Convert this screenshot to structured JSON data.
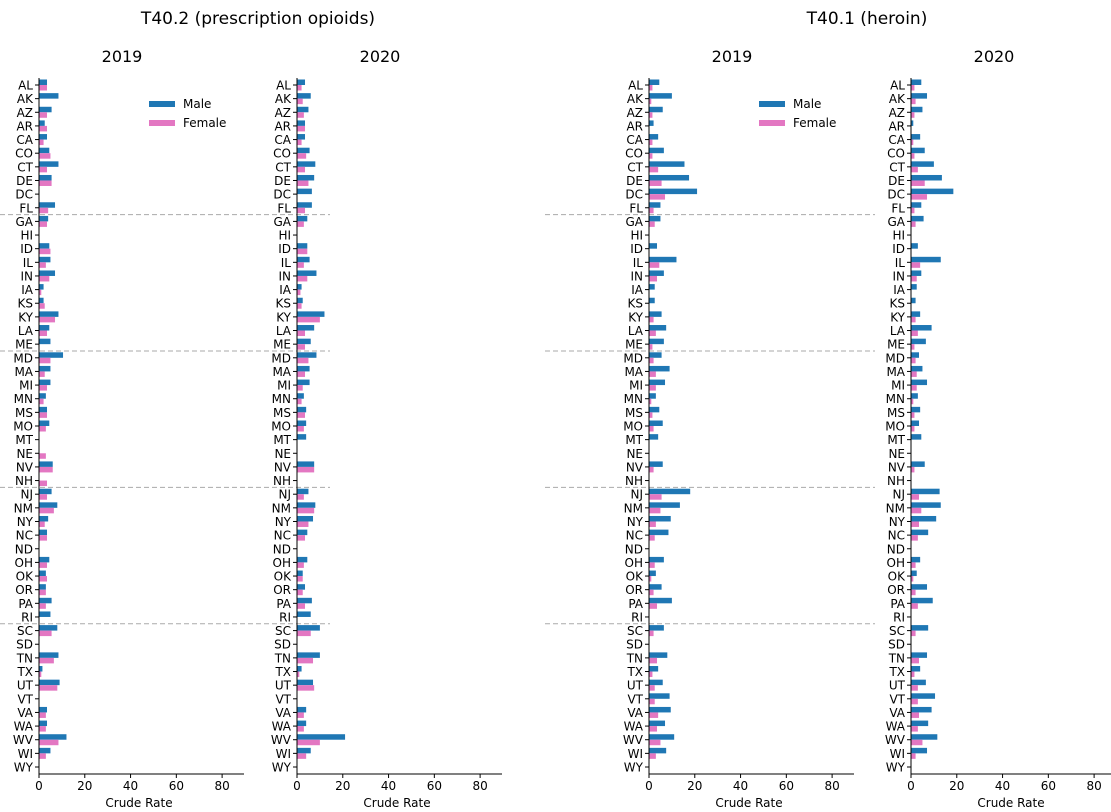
{
  "figure": {
    "group_titles": [
      "T40.2 (prescription opioids)",
      "T40.1 (heroin)"
    ],
    "xlabel": "Crude Rate",
    "legend": [
      "Male",
      "Female"
    ]
  },
  "colors": {
    "male": "#1f77b4",
    "female": "#e377c2",
    "axis": "#000000",
    "divider": "#aaaaaa"
  },
  "chart_data": [
    {
      "type": "bar",
      "orientation": "horizontal",
      "title": "2019",
      "group": "T40.2 (prescription opioids)",
      "xlabel": "Crude Rate",
      "xlim": [
        0,
        90
      ],
      "xticks": [
        0,
        20,
        40,
        60,
        80
      ],
      "categories": [
        "AL",
        "AK",
        "AZ",
        "AR",
        "CA",
        "CO",
        "CT",
        "DE",
        "DC",
        "FL",
        "GA",
        "HI",
        "ID",
        "IL",
        "IN",
        "IA",
        "KS",
        "KY",
        "LA",
        "ME",
        "MD",
        "MA",
        "MI",
        "MN",
        "MS",
        "MO",
        "MT",
        "NE",
        "NV",
        "NH",
        "NJ",
        "NM",
        "NY",
        "NC",
        "ND",
        "OH",
        "OK",
        "OR",
        "PA",
        "RI",
        "SC",
        "SD",
        "TN",
        "TX",
        "UT",
        "VT",
        "VA",
        "WA",
        "WV",
        "WI",
        "WY"
      ],
      "series": [
        {
          "name": "Male",
          "values": [
            3.5,
            8.5,
            5.5,
            2.5,
            3.5,
            4.5,
            8.5,
            5.5,
            0,
            7,
            4,
            0,
            4.5,
            5,
            7,
            2,
            2,
            8.5,
            4.5,
            5,
            10.5,
            5,
            5,
            3,
            3.5,
            4.5,
            0,
            0,
            6,
            0,
            5.5,
            8,
            4,
            3.5,
            0,
            4.5,
            3,
            3,
            5.5,
            5,
            8,
            0,
            8.5,
            1.5,
            9,
            0,
            3.5,
            3.5,
            12,
            5,
            0
          ]
        },
        {
          "name": "Female",
          "values": [
            3.5,
            0,
            3.5,
            3.5,
            2,
            5,
            3.5,
            5.5,
            0,
            4,
            3.5,
            0,
            5,
            3,
            4.5,
            1,
            2.5,
            7,
            3.5,
            0,
            5,
            2.5,
            3.5,
            2,
            3.5,
            3,
            0,
            3,
            6,
            3.5,
            3.5,
            6.5,
            2.5,
            3.5,
            0,
            3.5,
            3.5,
            3,
            3,
            0,
            5.5,
            0,
            6.5,
            1,
            8,
            0,
            3,
            3,
            8.5,
            3,
            0
          ]
        }
      ],
      "legend": "top-right",
      "grid": false
    },
    {
      "type": "bar",
      "orientation": "horizontal",
      "title": "2020",
      "group": "T40.2 (prescription opioids)",
      "xlabel": "Crude Rate",
      "xlim": [
        0,
        90
      ],
      "xticks": [
        0,
        20,
        40,
        60,
        80
      ],
      "categories": [
        "AL",
        "AK",
        "AZ",
        "AR",
        "CA",
        "CO",
        "CT",
        "DE",
        "DC",
        "FL",
        "GA",
        "HI",
        "ID",
        "IL",
        "IN",
        "IA",
        "KS",
        "KY",
        "LA",
        "ME",
        "MD",
        "MA",
        "MI",
        "MN",
        "MS",
        "MO",
        "MT",
        "NE",
        "NV",
        "NH",
        "NJ",
        "NM",
        "NY",
        "NC",
        "ND",
        "OH",
        "OK",
        "OR",
        "PA",
        "RI",
        "SC",
        "SD",
        "TN",
        "TX",
        "UT",
        "VT",
        "VA",
        "WA",
        "WV",
        "WI",
        "WY"
      ],
      "series": [
        {
          "name": "Male",
          "values": [
            3.5,
            6,
            5,
            3.5,
            3.5,
            5.5,
            8,
            7.5,
            6.5,
            6.5,
            4.5,
            0,
            4.5,
            5.5,
            8.5,
            2,
            2.5,
            12,
            7.5,
            6,
            8.5,
            5.5,
            5.5,
            3,
            4,
            4,
            4,
            0,
            7.5,
            0,
            5,
            8,
            7,
            4.5,
            0,
            4.5,
            2.5,
            3.5,
            6.5,
            6,
            10,
            0,
            10,
            2,
            7,
            0,
            4,
            4,
            21,
            6,
            0
          ]
        },
        {
          "name": "Female",
          "values": [
            2,
            2.5,
            3,
            3.5,
            2,
            4,
            3.5,
            5,
            0,
            3.5,
            3,
            0,
            4.5,
            3,
            4.5,
            1.5,
            2,
            10,
            3.5,
            3.5,
            5,
            3.5,
            2.5,
            2,
            3.5,
            3,
            0,
            0,
            7.5,
            0,
            3,
            7.5,
            5,
            3.5,
            0,
            3,
            2.5,
            2.5,
            3.5,
            0,
            6,
            0,
            7,
            1,
            7.5,
            0,
            3,
            3,
            10,
            4,
            0
          ]
        }
      ],
      "grid": false
    },
    {
      "type": "bar",
      "orientation": "horizontal",
      "title": "2019",
      "group": "T40.1 (heroin)",
      "xlabel": "Crude Rate",
      "xlim": [
        0,
        90
      ],
      "xticks": [
        0,
        20,
        40,
        60,
        80
      ],
      "categories": [
        "AL",
        "AK",
        "AZ",
        "AR",
        "CA",
        "CO",
        "CT",
        "DE",
        "DC",
        "FL",
        "GA",
        "HI",
        "ID",
        "IL",
        "IN",
        "IA",
        "KS",
        "KY",
        "LA",
        "ME",
        "MD",
        "MA",
        "MI",
        "MN",
        "MS",
        "MO",
        "MT",
        "NE",
        "NV",
        "NH",
        "NJ",
        "NM",
        "NY",
        "NC",
        "ND",
        "OH",
        "OK",
        "OR",
        "PA",
        "RI",
        "SC",
        "SD",
        "TN",
        "TX",
        "UT",
        "VT",
        "VA",
        "WA",
        "WV",
        "WI",
        "WY"
      ],
      "series": [
        {
          "name": "Male",
          "values": [
            4.5,
            10,
            6,
            2,
            4,
            6.5,
            15.5,
            17.5,
            21,
            5,
            5,
            0,
            3.5,
            12,
            6.5,
            2.5,
            2.5,
            5.5,
            7.5,
            6.5,
            5.5,
            9,
            7,
            3,
            4.5,
            6,
            4,
            0,
            6,
            0,
            18,
            13.5,
            9.5,
            8.5,
            0,
            6.5,
            3,
            5.5,
            10,
            0,
            6.5,
            0,
            8,
            4,
            6,
            9,
            9.5,
            7,
            11,
            7.5,
            0
          ]
        },
        {
          "name": "Female",
          "values": [
            1.5,
            1,
            1.5,
            0,
            1.5,
            1.5,
            4,
            5.5,
            7,
            2,
            2.5,
            0,
            0,
            4.5,
            3.5,
            0,
            0,
            2,
            3,
            1.5,
            2,
            3,
            3,
            1,
            1.5,
            2,
            0,
            0,
            2,
            0,
            5.5,
            5,
            3,
            2.5,
            0,
            2.5,
            1,
            2,
            3.5,
            0,
            2,
            0,
            3.5,
            1.5,
            2.5,
            2.5,
            4,
            3.5,
            5,
            3,
            0
          ]
        }
      ],
      "legend": "top-right",
      "grid": false
    },
    {
      "type": "bar",
      "orientation": "horizontal",
      "title": "2020",
      "group": "T40.1 (heroin)",
      "xlabel": "Crude Rate",
      "xlim": [
        0,
        90
      ],
      "xticks": [
        0,
        20,
        40,
        60,
        80
      ],
      "categories": [
        "AL",
        "AK",
        "AZ",
        "AR",
        "CA",
        "CO",
        "CT",
        "DE",
        "DC",
        "FL",
        "GA",
        "HI",
        "ID",
        "IL",
        "IN",
        "IA",
        "KS",
        "KY",
        "LA",
        "ME",
        "MD",
        "MA",
        "MI",
        "MN",
        "MS",
        "MO",
        "MT",
        "NE",
        "NV",
        "NH",
        "NJ",
        "NM",
        "NY",
        "NC",
        "ND",
        "OH",
        "OK",
        "OR",
        "PA",
        "RI",
        "SC",
        "SD",
        "TN",
        "TX",
        "UT",
        "VT",
        "VA",
        "WA",
        "WV",
        "WI",
        "WY"
      ],
      "series": [
        {
          "name": "Male",
          "values": [
            4.5,
            7,
            5,
            1,
            4,
            6,
            10,
            13.5,
            18.5,
            4.5,
            5.5,
            0,
            3,
            13,
            4.5,
            2.5,
            2,
            4,
            9,
            6.5,
            3.5,
            5,
            7,
            3,
            4,
            3.5,
            4.5,
            0,
            6,
            0,
            12.5,
            13,
            11,
            7.5,
            0,
            4,
            2.5,
            7,
            9.5,
            0,
            7.5,
            0,
            7,
            4,
            6.5,
            10.5,
            9,
            7.5,
            11.5,
            7,
            0
          ]
        },
        {
          "name": "Female",
          "values": [
            1.5,
            2,
            1.5,
            0,
            1,
            1.5,
            3,
            6,
            7,
            1.5,
            2,
            0,
            0,
            4,
            2.5,
            0,
            0,
            2,
            3,
            1.5,
            2,
            2.5,
            2.5,
            1,
            1.5,
            1.5,
            0,
            0,
            1.5,
            0,
            3.5,
            4.5,
            3.5,
            3,
            0,
            2,
            1,
            2,
            3,
            0,
            2,
            0,
            3.5,
            1.5,
            3,
            3,
            3.5,
            3,
            5,
            2,
            0
          ]
        }
      ],
      "grid": false
    }
  ]
}
